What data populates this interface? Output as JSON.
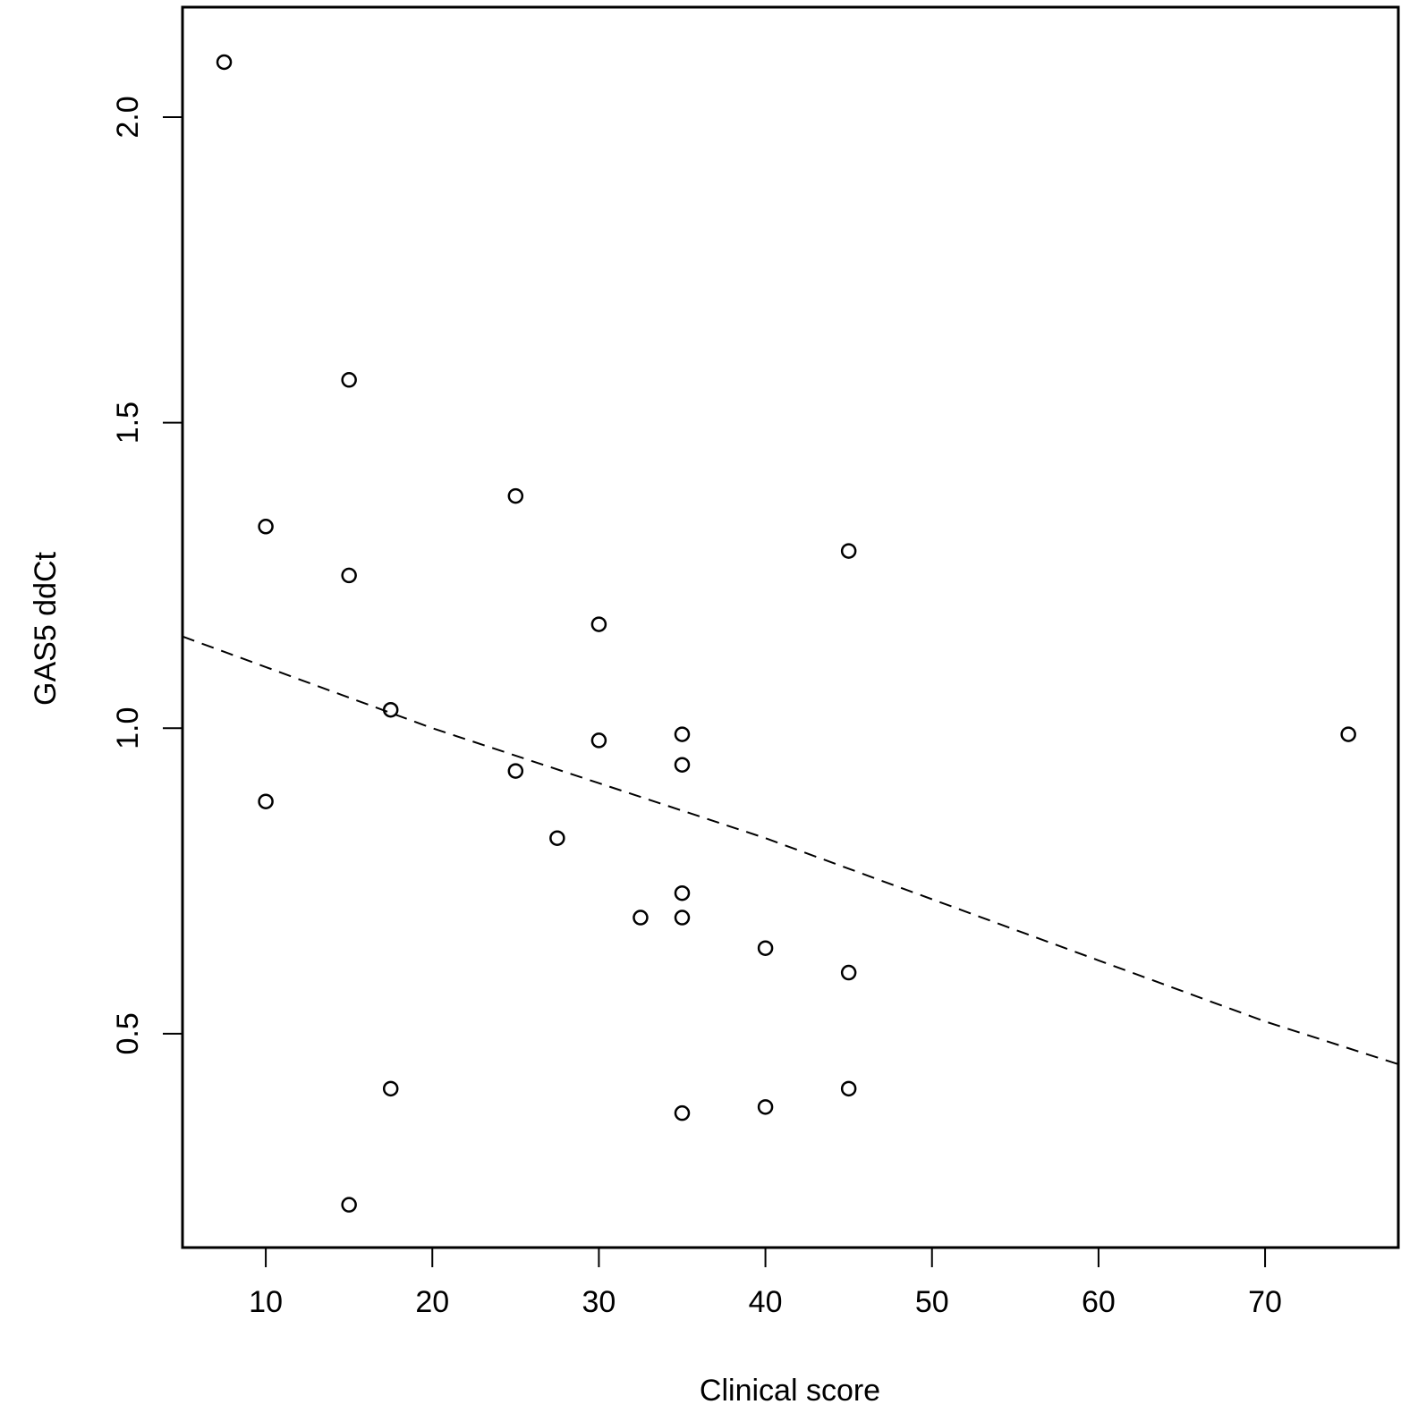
{
  "chart_data": {
    "type": "scatter",
    "title": "",
    "xlabel": "Clinical score",
    "ylabel": "GAS5 ddCt",
    "xlim": [
      5,
      78
    ],
    "ylim": [
      0.15,
      2.18
    ],
    "x_ticks": [
      10,
      20,
      30,
      40,
      50,
      60,
      70
    ],
    "x_tick_labels": [
      "10",
      "20",
      "30",
      "40",
      "50",
      "60",
      "70"
    ],
    "y_ticks": [
      0.5,
      1.0,
      1.5,
      2.0
    ],
    "y_tick_labels": [
      "0.5",
      "1.0",
      "1.5",
      "2.0"
    ],
    "grid": false,
    "legend": "none",
    "points": [
      {
        "x": 7.5,
        "y": 2.09
      },
      {
        "x": 10,
        "y": 1.33
      },
      {
        "x": 10,
        "y": 0.88
      },
      {
        "x": 15,
        "y": 1.57
      },
      {
        "x": 15,
        "y": 1.25
      },
      {
        "x": 15,
        "y": 0.22
      },
      {
        "x": 17.5,
        "y": 1.03
      },
      {
        "x": 17.5,
        "y": 0.41
      },
      {
        "x": 25,
        "y": 1.38
      },
      {
        "x": 25,
        "y": 0.93
      },
      {
        "x": 27.5,
        "y": 0.82
      },
      {
        "x": 30,
        "y": 1.17
      },
      {
        "x": 30,
        "y": 0.98
      },
      {
        "x": 32.5,
        "y": 0.69
      },
      {
        "x": 35,
        "y": 0.99
      },
      {
        "x": 35,
        "y": 0.94
      },
      {
        "x": 35,
        "y": 0.73
      },
      {
        "x": 35,
        "y": 0.69
      },
      {
        "x": 35,
        "y": 0.37
      },
      {
        "x": 40,
        "y": 0.64
      },
      {
        "x": 40,
        "y": 0.38
      },
      {
        "x": 45,
        "y": 1.29
      },
      {
        "x": 45,
        "y": 0.6
      },
      {
        "x": 45,
        "y": 0.41
      },
      {
        "x": 75,
        "y": 0.99
      }
    ],
    "trend_line": {
      "style": "dashed",
      "points": [
        {
          "x": 5,
          "y": 1.15
        },
        {
          "x": 10,
          "y": 1.1
        },
        {
          "x": 20,
          "y": 1.0
        },
        {
          "x": 30,
          "y": 0.91
        },
        {
          "x": 40,
          "y": 0.82
        },
        {
          "x": 50,
          "y": 0.72
        },
        {
          "x": 60,
          "y": 0.62
        },
        {
          "x": 70,
          "y": 0.52
        },
        {
          "x": 78,
          "y": 0.45
        }
      ]
    }
  }
}
